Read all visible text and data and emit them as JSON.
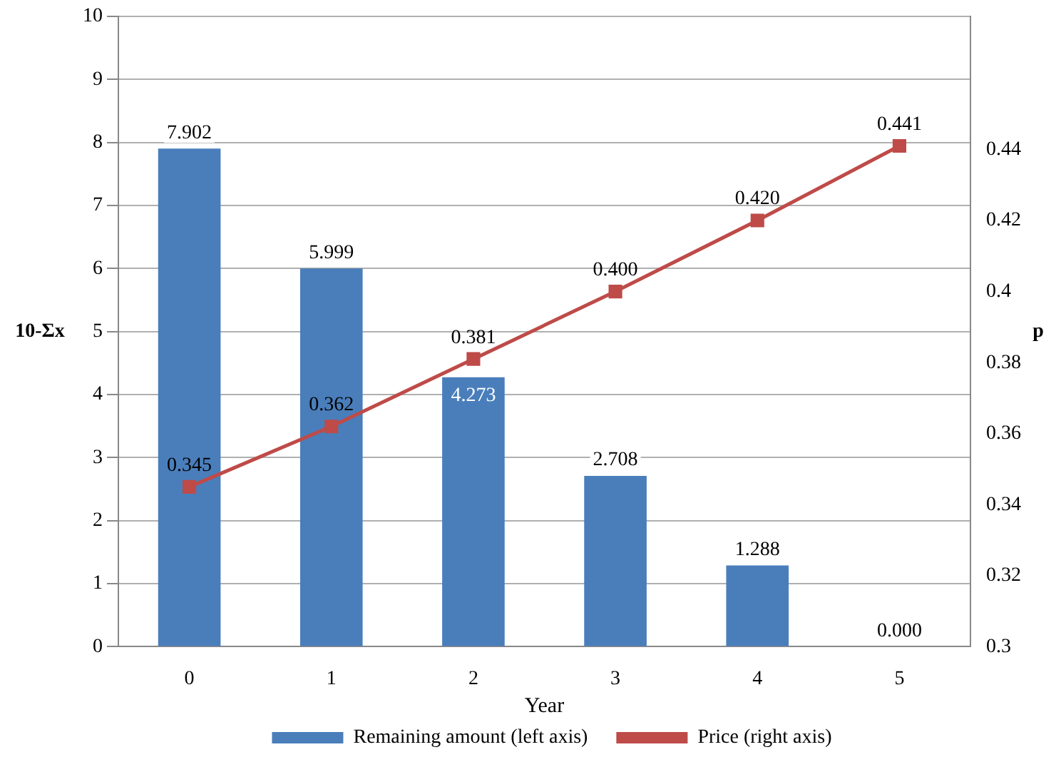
{
  "chart_data": {
    "type": "bar",
    "xlabel": "Year",
    "ylabel": "10-Σx",
    "y2label": "p",
    "categories": [
      "0",
      "1",
      "2",
      "3",
      "4",
      "5"
    ],
    "series": [
      {
        "name": "Remaining amount (left axis)",
        "color": "#4a7ebb",
        "values": [
          7.902,
          5.999,
          4.273,
          2.708,
          1.288,
          0
        ],
        "value_labels": [
          "7.902",
          "5.999",
          "4.273",
          "2.708",
          "1.288",
          "0.000"
        ]
      },
      {
        "name": "Price (right axis)",
        "type": "line",
        "axis": "y2",
        "color": "#be4b48",
        "values": [
          0.345,
          0.362,
          0.381,
          0.4,
          0.42,
          0.441
        ],
        "value_labels": [
          "0.345",
          "0.362",
          "0.381",
          "0.400",
          "0.420",
          "0.441"
        ]
      }
    ],
    "ylim": [
      0,
      10
    ],
    "yticks": [
      0,
      1,
      2,
      3,
      4,
      5,
      6,
      7,
      8,
      9,
      10
    ],
    "y2lim": [
      0.3,
      0.4775
    ],
    "y2ticks": [
      0.3,
      0.32,
      0.34,
      0.36,
      0.38,
      0.4,
      0.42,
      0.44
    ],
    "grid": "y",
    "legend": "bottom",
    "marker": "square",
    "line_style": "solid"
  }
}
